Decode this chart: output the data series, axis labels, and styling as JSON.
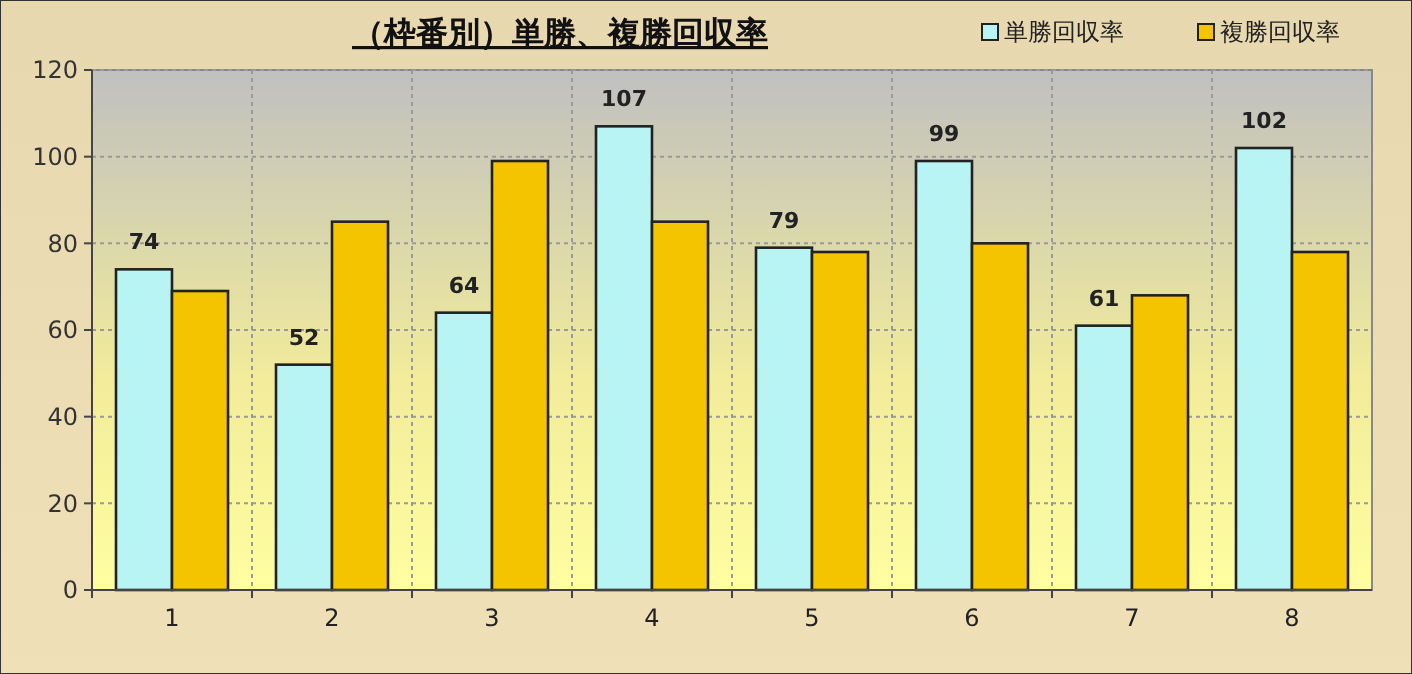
{
  "chart_data": {
    "type": "bar",
    "title": "（枠番別）単勝、複勝回収率",
    "categories": [
      "1",
      "2",
      "3",
      "4",
      "5",
      "6",
      "7",
      "8"
    ],
    "series": [
      {
        "name": "単勝回収率",
        "color": "#b8f4f4",
        "values": [
          74,
          52,
          64,
          107,
          79,
          99,
          61,
          102
        ],
        "value_labels": [
          "74",
          "52",
          "64",
          "107",
          "79",
          "99",
          "61",
          "102"
        ]
      },
      {
        "name": "複勝回収率",
        "color": "#f5c400",
        "values": [
          69,
          85,
          99,
          85,
          78,
          80,
          68,
          78
        ]
      }
    ],
    "ylim": [
      0,
      120
    ],
    "yticks": [
      0,
      20,
      40,
      60,
      80,
      100,
      120
    ],
    "grid": true,
    "legend": "top right"
  }
}
